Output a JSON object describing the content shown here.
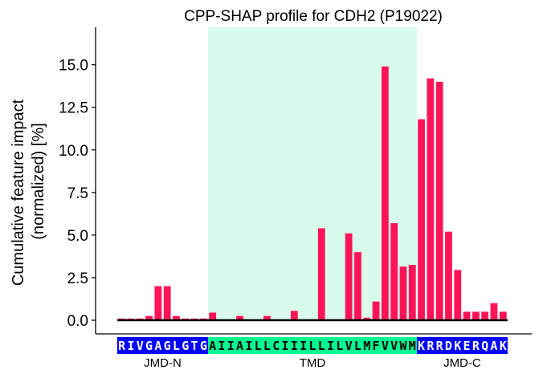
{
  "chart_data": {
    "type": "bar",
    "title": "CPP-SHAP profile for CDH2 (P19022)",
    "ylabel_line1": "Cumulative feature impact",
    "ylabel_line2": "(normalized) [%]",
    "xlabel": "",
    "ylim": [
      -0.8,
      17.2
    ],
    "yticks": [
      0.0,
      2.5,
      5.0,
      7.5,
      10.0,
      12.5,
      15.0
    ],
    "ytick_labels": [
      "0.0",
      "2.5",
      "5.0",
      "7.5",
      "10.0",
      "12.5",
      "15.0"
    ],
    "grid": false,
    "bar_color": "#ff1458",
    "sequence": "RIVGAGLGTGAIIAILLCIIILLILVLMFVVWMKRRDKERQAK",
    "values": [
      0.1,
      0.1,
      0.1,
      0.25,
      2.0,
      2.0,
      0.25,
      0.1,
      0.1,
      0.1,
      0.45,
      0.05,
      0.05,
      0.25,
      0.05,
      0.05,
      0.25,
      0.05,
      0.05,
      0.55,
      0.05,
      0.05,
      5.4,
      0.05,
      0.05,
      5.1,
      4.0,
      0.15,
      1.1,
      14.9,
      5.7,
      3.15,
      3.25,
      11.8,
      14.2,
      14.0,
      5.2,
      2.95,
      0.5,
      0.5,
      0.5,
      1.0,
      0.5
    ],
    "regions": [
      {
        "name": "JMD-N",
        "start": 0,
        "end": 10,
        "color": "#0000ff",
        "text_color": "#ffffff"
      },
      {
        "name": "TMD",
        "start": 10,
        "end": 33,
        "color": "#00f890",
        "text_color": "#000000",
        "highlight": "#d8fbec"
      },
      {
        "name": "JMD-C",
        "start": 33,
        "end": 43,
        "color": "#0000ff",
        "text_color": "#ffffff"
      }
    ]
  }
}
